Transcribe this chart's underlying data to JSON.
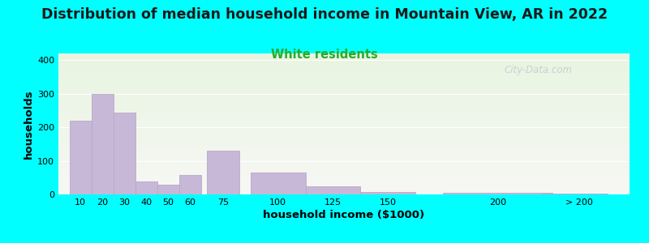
{
  "title": "Distribution of median household income in Mountain View, AR in 2022",
  "subtitle": "White residents",
  "xlabel": "household income ($1000)",
  "ylabel": "households",
  "background_outer": "#00FFFF",
  "bar_color": "#c8b8d8",
  "bar_edge_color": "#b8a8c8",
  "title_fontsize": 12.5,
  "subtitle_fontsize": 10.5,
  "subtitle_color": "#2aaa2a",
  "xlabel_fontsize": 9.5,
  "ylabel_fontsize": 9.5,
  "tick_labels": [
    "10",
    "20",
    "30",
    "40",
    "50",
    "60",
    "75",
    "100",
    "125",
    "150",
    "200",
    "> 200"
  ],
  "bin_left_edges": [
    5,
    15,
    25,
    35,
    45,
    55,
    67.5,
    87.5,
    112.5,
    137.5,
    175,
    220
  ],
  "bin_widths": [
    10,
    10,
    10,
    10,
    10,
    10,
    15,
    25,
    25,
    25,
    50,
    30
  ],
  "bin_tick_pos": [
    10,
    20,
    30,
    40,
    50,
    60,
    75,
    100,
    125,
    150,
    200,
    237
  ],
  "bar_heights": [
    220,
    300,
    245,
    38,
    30,
    57,
    130,
    65,
    25,
    7,
    5,
    3
  ],
  "ylim": [
    0,
    420
  ],
  "yticks": [
    0,
    100,
    200,
    300,
    400
  ],
  "xlim_min": 0,
  "xlim_max": 260,
  "watermark": "City-Data.com"
}
